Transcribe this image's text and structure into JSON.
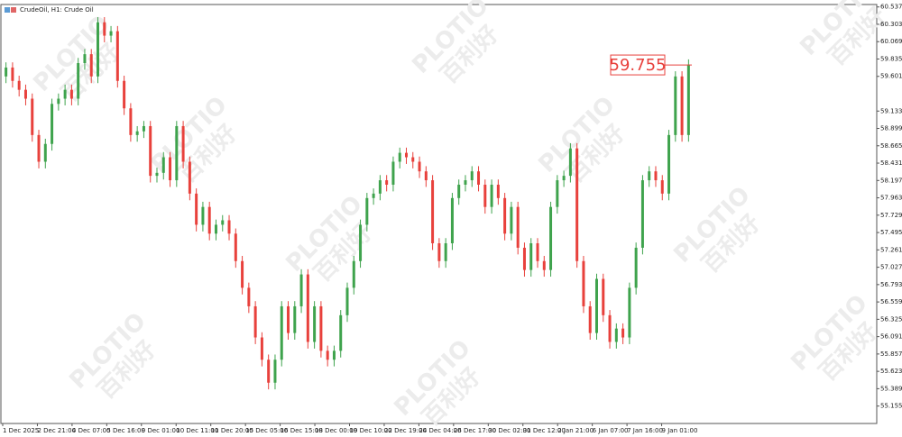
{
  "chart_data": {
    "type": "candlestick",
    "title": "CrudeOil, H1:  Crude Oil",
    "watermark": [
      "PLOTIO",
      "百利好"
    ],
    "up_color": "#3fa34d",
    "down_color": "#e8413c",
    "ylim": [
      54.92,
      60.57
    ],
    "yticks": [
      60.537,
      60.303,
      60.069,
      59.835,
      59.601,
      59.133,
      58.899,
      58.665,
      58.431,
      58.197,
      57.963,
      57.729,
      57.495,
      57.261,
      57.027,
      56.793,
      56.559,
      56.325,
      56.091,
      55.857,
      55.623,
      55.389,
      55.155
    ],
    "x_tick_labels": [
      "1 Dec 2025",
      "2 Dec 21:00",
      "4 Dec 07:00",
      "5 Dec 16:00",
      "9 Dec 01:00",
      "10 Dec 11:00",
      "11 Dec 20:00",
      "15 Dec 05:00",
      "16 Dec 15:00",
      "18 Dec 00:00",
      "19 Dec 10:00",
      "22 Dec 19:00",
      "24 Dec 04:00",
      "26 Dec 17:00",
      "30 Dec 02:00",
      "31 Dec 12:00",
      "2 Jan 21:00",
      "6 Jan 07:00",
      "7 Jan 16:00",
      "9 Jan 01:00"
    ],
    "current_price": 59.755,
    "open": [
      59.6,
      59.72,
      59.54,
      59.42,
      59.3,
      58.81,
      58.45,
      58.69,
      59.23,
      59.3,
      59.42,
      59.3,
      59.78,
      59.9,
      59.6,
      60.33,
      60.15,
      60.21,
      59.54,
      59.17,
      58.81,
      58.86,
      58.93,
      58.26,
      58.3,
      58.51,
      58.2,
      58.93,
      58.45,
      58.02,
      57.6,
      57.84,
      57.48,
      57.6,
      57.66,
      57.48,
      57.11,
      56.75,
      56.5,
      56.08,
      55.78,
      55.47,
      55.78,
      56.5,
      56.14,
      56.5,
      56.93,
      56.02,
      56.5,
      55.9,
      55.78,
      55.9,
      56.38,
      56.75,
      57.11,
      57.6,
      57.96,
      58.02,
      58.2,
      58.14,
      58.45,
      58.57,
      58.51,
      58.45,
      58.32,
      58.2,
      57.35,
      57.11,
      57.35,
      57.96,
      58.14,
      58.2,
      58.32,
      58.14,
      57.84,
      58.14,
      57.96,
      57.48,
      57.84,
      57.29,
      56.99,
      57.35,
      57.11,
      56.99,
      57.84,
      58.2,
      58.26,
      58.63,
      57.11,
      56.5,
      56.14,
      56.87,
      56.38,
      56.02,
      56.2,
      56.08,
      56.75,
      57.29,
      58.2,
      58.32,
      58.2,
      58.02,
      58.81,
      59.6,
      58.81
    ],
    "high": [
      59.79,
      59.79,
      59.61,
      59.49,
      59.37,
      58.88,
      58.76,
      59.3,
      59.37,
      59.49,
      59.49,
      59.85,
      59.97,
      59.97,
      60.4,
      60.4,
      60.28,
      60.28,
      59.61,
      59.24,
      58.93,
      59.0,
      59.0,
      58.37,
      58.58,
      58.58,
      59.0,
      59.0,
      58.52,
      58.09,
      57.91,
      57.91,
      57.67,
      57.73,
      57.73,
      57.55,
      57.18,
      56.82,
      56.57,
      56.15,
      55.85,
      55.85,
      56.57,
      56.57,
      56.57,
      57.0,
      57.0,
      56.57,
      56.57,
      55.97,
      55.97,
      56.45,
      56.82,
      57.18,
      57.67,
      58.03,
      58.09,
      58.27,
      58.27,
      58.52,
      58.64,
      58.64,
      58.58,
      58.52,
      58.39,
      58.27,
      57.42,
      57.42,
      58.03,
      58.21,
      58.27,
      58.39,
      58.39,
      58.21,
      58.21,
      58.21,
      58.03,
      57.91,
      57.91,
      57.36,
      57.42,
      57.42,
      57.18,
      57.91,
      58.27,
      58.33,
      58.7,
      58.7,
      57.18,
      56.57,
      56.94,
      56.94,
      56.45,
      56.27,
      56.27,
      56.82,
      57.36,
      58.27,
      58.39,
      58.39,
      58.27,
      58.88,
      59.67,
      59.67,
      59.83
    ],
    "low": [
      59.51,
      59.45,
      59.33,
      59.21,
      58.72,
      58.36,
      58.36,
      58.6,
      59.14,
      59.21,
      59.21,
      59.21,
      59.69,
      59.51,
      59.51,
      60.06,
      60.06,
      59.45,
      59.08,
      58.72,
      58.72,
      58.77,
      58.17,
      58.17,
      58.21,
      58.11,
      58.11,
      58.36,
      57.93,
      57.51,
      57.51,
      57.39,
      57.39,
      57.51,
      57.39,
      57.02,
      56.66,
      56.41,
      55.99,
      55.69,
      55.38,
      55.38,
      55.69,
      56.05,
      56.05,
      56.41,
      55.93,
      55.93,
      55.81,
      55.69,
      55.69,
      55.81,
      56.29,
      56.66,
      57.02,
      57.51,
      57.87,
      57.93,
      58.05,
      58.05,
      58.36,
      58.42,
      58.36,
      58.23,
      58.11,
      57.26,
      57.02,
      57.02,
      57.26,
      57.87,
      58.05,
      58.11,
      58.05,
      57.75,
      57.75,
      57.87,
      57.39,
      57.39,
      57.2,
      56.9,
      56.9,
      57.02,
      56.9,
      56.9,
      57.75,
      58.11,
      58.17,
      57.02,
      56.41,
      56.05,
      56.05,
      56.29,
      55.93,
      55.93,
      55.99,
      55.99,
      56.66,
      57.2,
      58.11,
      58.11,
      57.93,
      57.93,
      58.72,
      58.72,
      58.72
    ],
    "close": [
      59.72,
      59.54,
      59.42,
      59.3,
      58.81,
      58.45,
      58.69,
      59.23,
      59.3,
      59.42,
      59.3,
      59.78,
      59.9,
      59.6,
      60.33,
      60.15,
      60.21,
      59.54,
      59.17,
      58.81,
      58.86,
      58.93,
      58.26,
      58.3,
      58.51,
      58.2,
      58.93,
      58.45,
      58.02,
      57.6,
      57.84,
      57.48,
      57.6,
      57.66,
      57.48,
      57.11,
      56.75,
      56.5,
      56.08,
      55.78,
      55.47,
      55.78,
      56.5,
      56.14,
      56.5,
      56.93,
      56.02,
      56.5,
      55.9,
      55.78,
      55.9,
      56.38,
      56.75,
      57.11,
      57.6,
      57.96,
      58.02,
      58.2,
      58.14,
      58.45,
      58.57,
      58.51,
      58.45,
      58.32,
      58.2,
      57.35,
      57.11,
      57.35,
      57.96,
      58.14,
      58.2,
      58.32,
      58.14,
      57.84,
      58.14,
      57.96,
      57.48,
      57.84,
      57.29,
      56.99,
      57.35,
      57.11,
      56.99,
      57.84,
      58.2,
      58.26,
      58.63,
      57.11,
      56.5,
      56.14,
      56.87,
      56.38,
      56.02,
      56.2,
      56.08,
      56.75,
      57.29,
      58.2,
      58.32,
      58.2,
      58.02,
      58.81,
      59.6,
      58.81,
      59.76
    ]
  }
}
